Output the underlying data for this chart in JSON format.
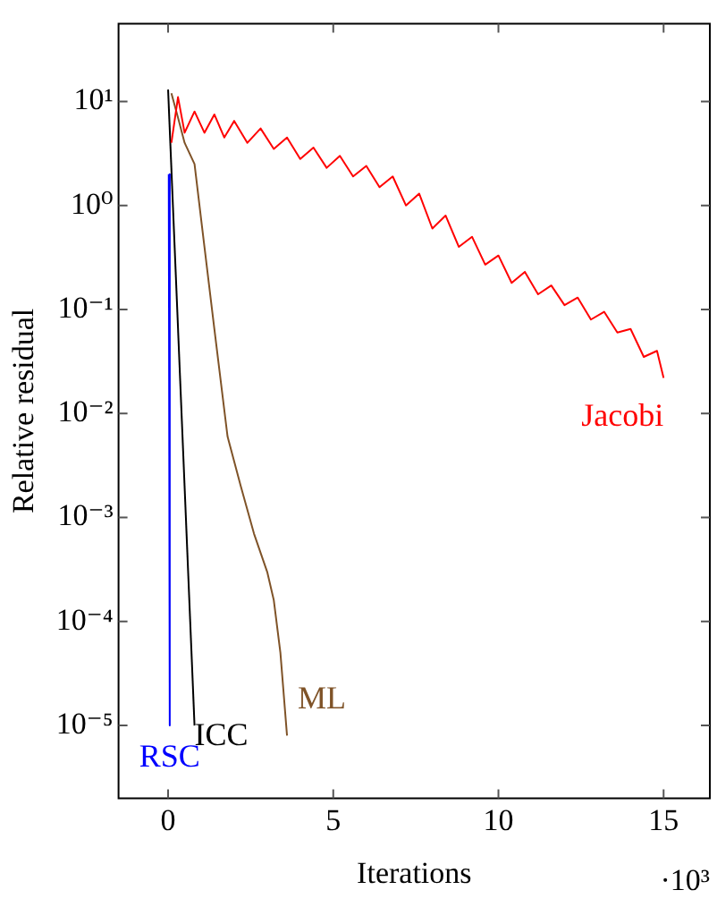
{
  "chart_data": {
    "type": "line",
    "xlabel": "Iterations",
    "ylabel": "Relative residual",
    "annotations": [
      "·10³"
    ],
    "log": "y",
    "grid": false,
    "legend": false,
    "marker": "none",
    "line_style": "solid",
    "xlim": [
      -1.5,
      16.4
    ],
    "xticks": [
      0,
      5,
      10,
      15
    ],
    "ylim": [
      2e-06,
      56
    ],
    "yticks": [
      {
        "value": 1e-05,
        "label": "10⁻⁵"
      },
      {
        "value": 0.0001,
        "label": "10⁻⁴"
      },
      {
        "value": 0.001,
        "label": "10⁻³"
      },
      {
        "value": 0.01,
        "label": "10⁻²"
      },
      {
        "value": 0.1,
        "label": "10⁻¹"
      },
      {
        "value": 1,
        "label": "10⁰"
      },
      {
        "value": 10,
        "label": "10¹"
      }
    ],
    "series": [
      {
        "name": "Jacobi",
        "color": "#ff0000",
        "x": [
          0.1,
          0.3,
          0.5,
          0.8,
          1.1,
          1.4,
          1.7,
          2,
          2.4,
          2.8,
          3.2,
          3.6,
          4,
          4.4,
          4.8,
          5.2,
          5.6,
          6,
          6.4,
          6.8,
          7.2,
          7.6,
          8,
          8.4,
          8.8,
          9.2,
          9.6,
          10,
          10.4,
          10.8,
          11.2,
          11.6,
          12,
          12.4,
          12.8,
          13.2,
          13.6,
          14,
          14.4,
          14.8,
          15
        ],
        "values": [
          4,
          11,
          5,
          8,
          5,
          7.5,
          4.5,
          6.5,
          4,
          5.5,
          3.5,
          4.5,
          2.8,
          3.6,
          2.3,
          3,
          1.9,
          2.4,
          1.5,
          1.9,
          1,
          1.3,
          0.6,
          0.8,
          0.4,
          0.5,
          0.27,
          0.33,
          0.18,
          0.23,
          0.14,
          0.17,
          0.11,
          0.13,
          0.08,
          0.095,
          0.06,
          0.065,
          0.035,
          0.04,
          0.022
        ]
      },
      {
        "name": "ML",
        "color": "#7f5328",
        "x": [
          0.1,
          0.3,
          0.5,
          0.8,
          1.1,
          1.4,
          1.8,
          2.2,
          2.6,
          3,
          3.2,
          3.4,
          3.6
        ],
        "values": [
          12,
          7,
          4,
          2.5,
          0.4,
          0.065,
          0.006,
          0.002,
          0.0007,
          0.0003,
          0.00016,
          5e-05,
          8e-06
        ]
      },
      {
        "name": "ICC",
        "color": "#000000",
        "x": [
          0,
          0.8
        ],
        "values": [
          13,
          1e-05
        ]
      },
      {
        "name": "RSC",
        "color": "#0000ff",
        "x": [
          0.02,
          0.05
        ],
        "values": [
          2,
          1e-05
        ]
      }
    ]
  }
}
